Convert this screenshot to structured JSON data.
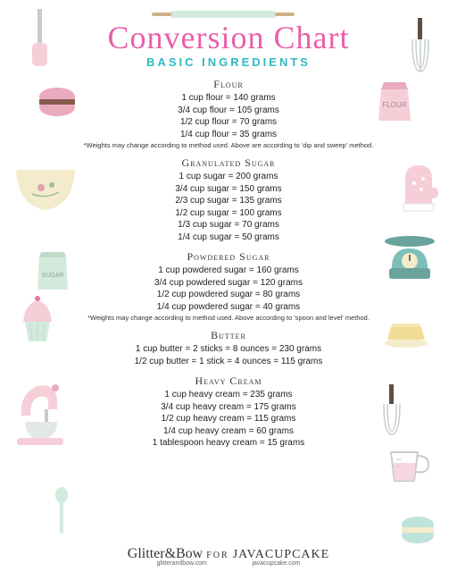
{
  "title": {
    "text": "Conversion Chart",
    "color": "#e95fa9",
    "fontsize": 36
  },
  "subtitle": {
    "text": "BASIC INGREDIENTS",
    "color": "#2fb9c4",
    "fontsize": 13
  },
  "section_title_fontsize": 12,
  "row_fontsize": 10,
  "note_fontsize": 7.5,
  "colors": {
    "pink": "#f4c9d4",
    "mint": "#cfe8da",
    "teal": "#6fb9b3",
    "cream": "#f3e9c7",
    "brown": "#4a3c33",
    "gray": "#bfc7c9",
    "butter": "#f0d98a"
  },
  "sections": [
    {
      "title": "Flour",
      "rows": [
        "1 cup flour = 140 grams",
        "3/4 cup flour = 105 grams",
        "1/2 cup flour = 70 grams",
        "1/4 cup flour = 35 grams"
      ],
      "note": "*Weights may change according to method used. Above are according to 'dip and sweep' method."
    },
    {
      "title": "Granulated Sugar",
      "rows": [
        "1 cup sugar = 200 grams",
        "3/4 cup sugar = 150 grams",
        "2/3 cup sugar = 135 grams",
        "1/2 cup sugar = 100 grams",
        "1/3 cup sugar = 70 grams",
        "1/4 cup sugar = 50 grams"
      ]
    },
    {
      "title": "Powdered Sugar",
      "rows": [
        "1 cup powdered sugar = 160 grams",
        "3/4 cup powdered sugar = 120 grams",
        "1/2 cup powdered sugar = 80 grams",
        "1/4 cup powdered sugar = 40 grams"
      ],
      "note": "*Weights may change according to method used. Above according to 'spoon and level' method."
    },
    {
      "title": "Butter",
      "rows": [
        "1 cup butter = 2 sticks = 8 ounces = 230 grams",
        "1/2 cup butter = 1 stick = 4 ounces = 115 grams"
      ]
    },
    {
      "title": "Heavy Cream",
      "rows": [
        "1 cup heavy cream = 235 grams",
        "3/4 cup heavy cream = 175 grams",
        "1/2 cup heavy cream = 115 grams",
        "1/4 cup heavy cream = 60 grams",
        "1 tablespoon heavy cream = 15 grams"
      ]
    }
  ],
  "footer": {
    "left": "Glitter&Bow",
    "left_sub": "glitterandbow.com",
    "mid": "FOR",
    "right": "JAVACUPCAKE",
    "right_sub": "javacupcake.com"
  }
}
